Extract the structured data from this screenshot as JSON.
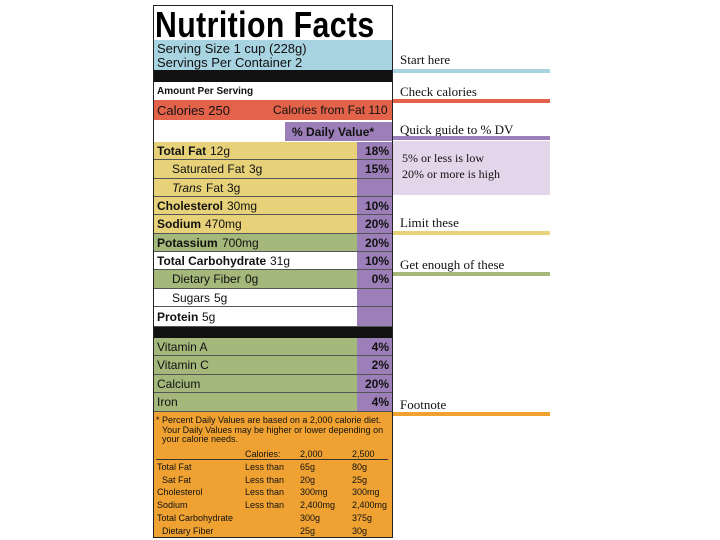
{
  "label": {
    "title": "Nutrition Facts",
    "serving_size": "Serving Size 1 cup (228g)",
    "servings_per_container": "Servings Per Container 2",
    "amount_per_serving": "Amount Per Serving",
    "calories": "Calories 250",
    "calories_from_fat": "Calories from Fat 110",
    "daily_value_header": "% Daily Value*",
    "rows": [
      {
        "name": "Total Fat",
        "amount": "12g",
        "dv": "18%"
      },
      {
        "name": "Saturated Fat",
        "amount": "3g",
        "dv": "15%"
      },
      {
        "name": "Trans",
        "suffix": "Fat",
        "amount": "3g"
      },
      {
        "name": "Cholesterol",
        "amount": "30mg",
        "dv": "10%"
      },
      {
        "name": "Sodium",
        "amount": "470mg",
        "dv": "20%"
      },
      {
        "name": "Potassium",
        "amount": "700mg",
        "dv": "20%"
      },
      {
        "name": "Total Carbohydrate",
        "amount": "31g",
        "dv": "10%"
      },
      {
        "name": "Dietary Fiber",
        "amount": "0g",
        "dv": "0%"
      },
      {
        "name": "Sugars",
        "amount": "5g"
      },
      {
        "name": "Protein",
        "amount": "5g"
      },
      {
        "name": "Vitamin A",
        "dv": "4%"
      },
      {
        "name": "Vitamin C",
        "dv": "2%"
      },
      {
        "name": "Calcium",
        "dv": "20%"
      },
      {
        "name": "Iron",
        "dv": "4%"
      }
    ],
    "footnote": [
      "* Percent Daily Values are based on a 2,000 calorie diet.",
      "Your Daily Values may be higher or lower depending on",
      "your calorie needs."
    ],
    "footnote_header": [
      "Calories:",
      "2,000",
      "2,500"
    ],
    "footnote_rows": [
      {
        "name": "Total Fat",
        "limit": "Less than",
        "v1": "65g",
        "v2": "80g"
      },
      {
        "name": "Sat Fat",
        "limit": "Less than",
        "v1": "20g",
        "v2": "25g"
      },
      {
        "name": "Cholesterol",
        "limit": "Less than",
        "v1": "300mg",
        "v2": "300mg"
      },
      {
        "name": "Sodium",
        "limit": "Less than",
        "v1": "2,400mg",
        "v2": "2,400mg"
      },
      {
        "name": "Total Carbohydrate",
        "v1": "300g",
        "v2": "375g"
      },
      {
        "name": "Dietary Fiber",
        "v1": "25g",
        "v2": "30g"
      }
    ]
  },
  "annotations": {
    "start_here": "Start here",
    "check_calories": "Check calories",
    "quick_guide": "Quick guide to % DV",
    "guide_low": "5% or less is low",
    "guide_high": "20% or more is high",
    "limit_these": "Limit these",
    "get_enough": "Get enough of these",
    "footnote": "Footnote"
  }
}
